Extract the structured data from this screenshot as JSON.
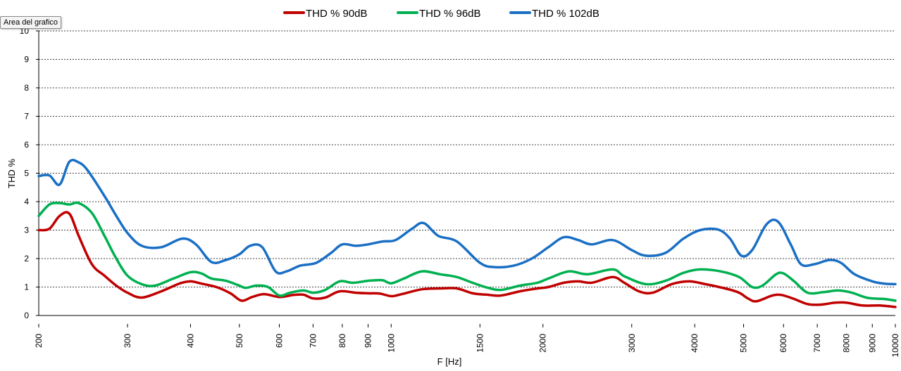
{
  "tooltip": {
    "text": "Area del grafico"
  },
  "chart_data": {
    "type": "line",
    "title": "",
    "xlabel": "F [Hz]",
    "ylabel": "THD %",
    "x_scale": "log",
    "xlim": [
      200,
      10000
    ],
    "ylim": [
      0,
      10
    ],
    "y_ticks": [
      "0",
      "1",
      "2",
      "3",
      "4",
      "5",
      "6",
      "7",
      "8",
      "9",
      "10"
    ],
    "x_ticks": [
      {
        "value": 200,
        "label": "200"
      },
      {
        "value": 300,
        "label": "300"
      },
      {
        "value": 400,
        "label": "400"
      },
      {
        "value": 500,
        "label": "500"
      },
      {
        "value": 600,
        "label": "600"
      },
      {
        "value": 700,
        "label": "700"
      },
      {
        "value": 800,
        "label": "800"
      },
      {
        "value": 900,
        "label": "900"
      },
      {
        "value": 1000,
        "label": "1000"
      },
      {
        "value": 1500,
        "label": "1500"
      },
      {
        "value": 2000,
        "label": "2000"
      },
      {
        "value": 3000,
        "label": "3000"
      },
      {
        "value": 4000,
        "label": "4000"
      },
      {
        "value": 5000,
        "label": "5000"
      },
      {
        "value": 6000,
        "label": "6000"
      },
      {
        "value": 7000,
        "label": "7000"
      },
      {
        "value": 8000,
        "label": "8000"
      },
      {
        "value": 9000,
        "label": "9000"
      },
      {
        "value": 10000,
        "label": "10000"
      }
    ],
    "grid": {
      "y_major": true,
      "style": "dashed"
    },
    "legend_position": "top-center",
    "series": [
      {
        "name": "THD % 90dB",
        "color": "#c00000",
        "points": [
          [
            200,
            3.0
          ],
          [
            210,
            3.05
          ],
          [
            220,
            3.5
          ],
          [
            230,
            3.58
          ],
          [
            240,
            2.8
          ],
          [
            255,
            1.8
          ],
          [
            270,
            1.4
          ],
          [
            285,
            1.05
          ],
          [
            300,
            0.8
          ],
          [
            320,
            0.63
          ],
          [
            350,
            0.85
          ],
          [
            380,
            1.12
          ],
          [
            400,
            1.2
          ],
          [
            420,
            1.12
          ],
          [
            450,
            1.0
          ],
          [
            480,
            0.78
          ],
          [
            505,
            0.52
          ],
          [
            530,
            0.65
          ],
          [
            560,
            0.75
          ],
          [
            600,
            0.65
          ],
          [
            640,
            0.72
          ],
          [
            670,
            0.73
          ],
          [
            700,
            0.6
          ],
          [
            740,
            0.63
          ],
          [
            790,
            0.85
          ],
          [
            850,
            0.8
          ],
          [
            900,
            0.78
          ],
          [
            950,
            0.77
          ],
          [
            1000,
            0.68
          ],
          [
            1050,
            0.75
          ],
          [
            1150,
            0.92
          ],
          [
            1250,
            0.95
          ],
          [
            1350,
            0.95
          ],
          [
            1450,
            0.78
          ],
          [
            1550,
            0.73
          ],
          [
            1650,
            0.7
          ],
          [
            1800,
            0.85
          ],
          [
            1950,
            0.95
          ],
          [
            2050,
            1.0
          ],
          [
            2200,
            1.15
          ],
          [
            2350,
            1.2
          ],
          [
            2500,
            1.15
          ],
          [
            2750,
            1.35
          ],
          [
            2900,
            1.15
          ],
          [
            3100,
            0.85
          ],
          [
            3300,
            0.8
          ],
          [
            3600,
            1.1
          ],
          [
            3900,
            1.2
          ],
          [
            4200,
            1.1
          ],
          [
            4600,
            0.95
          ],
          [
            4900,
            0.8
          ],
          [
            5100,
            0.6
          ],
          [
            5300,
            0.5
          ],
          [
            5700,
            0.7
          ],
          [
            5950,
            0.72
          ],
          [
            6300,
            0.58
          ],
          [
            6700,
            0.4
          ],
          [
            7100,
            0.38
          ],
          [
            7600,
            0.45
          ],
          [
            8000,
            0.45
          ],
          [
            8600,
            0.35
          ],
          [
            9300,
            0.35
          ],
          [
            10000,
            0.3
          ]
        ]
      },
      {
        "name": "THD % 96dB",
        "color": "#00b050",
        "points": [
          [
            200,
            3.5
          ],
          [
            210,
            3.9
          ],
          [
            220,
            3.95
          ],
          [
            230,
            3.9
          ],
          [
            240,
            3.95
          ],
          [
            255,
            3.6
          ],
          [
            270,
            2.8
          ],
          [
            285,
            2.0
          ],
          [
            300,
            1.4
          ],
          [
            320,
            1.1
          ],
          [
            340,
            1.05
          ],
          [
            370,
            1.3
          ],
          [
            400,
            1.52
          ],
          [
            420,
            1.48
          ],
          [
            440,
            1.3
          ],
          [
            470,
            1.22
          ],
          [
            500,
            1.05
          ],
          [
            515,
            0.97
          ],
          [
            540,
            1.05
          ],
          [
            570,
            1.0
          ],
          [
            600,
            0.7
          ],
          [
            630,
            0.8
          ],
          [
            670,
            0.88
          ],
          [
            700,
            0.8
          ],
          [
            740,
            0.9
          ],
          [
            790,
            1.2
          ],
          [
            840,
            1.15
          ],
          [
            900,
            1.22
          ],
          [
            960,
            1.24
          ],
          [
            1000,
            1.13
          ],
          [
            1060,
            1.3
          ],
          [
            1150,
            1.55
          ],
          [
            1250,
            1.45
          ],
          [
            1350,
            1.35
          ],
          [
            1450,
            1.15
          ],
          [
            1550,
            0.98
          ],
          [
            1650,
            0.9
          ],
          [
            1800,
            1.05
          ],
          [
            1950,
            1.15
          ],
          [
            2050,
            1.3
          ],
          [
            2250,
            1.55
          ],
          [
            2450,
            1.45
          ],
          [
            2750,
            1.62
          ],
          [
            2900,
            1.38
          ],
          [
            3200,
            1.1
          ],
          [
            3500,
            1.22
          ],
          [
            3800,
            1.5
          ],
          [
            4100,
            1.62
          ],
          [
            4500,
            1.55
          ],
          [
            4900,
            1.35
          ],
          [
            5200,
            1.0
          ],
          [
            5450,
            1.05
          ],
          [
            5800,
            1.45
          ],
          [
            6000,
            1.48
          ],
          [
            6300,
            1.2
          ],
          [
            6700,
            0.8
          ],
          [
            7200,
            0.82
          ],
          [
            7700,
            0.88
          ],
          [
            8200,
            0.8
          ],
          [
            8800,
            0.62
          ],
          [
            9500,
            0.58
          ],
          [
            10000,
            0.52
          ]
        ]
      },
      {
        "name": "THD % 102dB",
        "color": "#1a6fc4",
        "points": [
          [
            200,
            4.9
          ],
          [
            210,
            4.92
          ],
          [
            220,
            4.6
          ],
          [
            230,
            5.4
          ],
          [
            240,
            5.38
          ],
          [
            250,
            5.1
          ],
          [
            270,
            4.2
          ],
          [
            285,
            3.5
          ],
          [
            300,
            2.9
          ],
          [
            320,
            2.45
          ],
          [
            350,
            2.4
          ],
          [
            385,
            2.7
          ],
          [
            410,
            2.5
          ],
          [
            440,
            1.88
          ],
          [
            470,
            1.95
          ],
          [
            500,
            2.15
          ],
          [
            525,
            2.45
          ],
          [
            555,
            2.4
          ],
          [
            590,
            1.55
          ],
          [
            620,
            1.55
          ],
          [
            660,
            1.75
          ],
          [
            710,
            1.85
          ],
          [
            760,
            2.2
          ],
          [
            800,
            2.5
          ],
          [
            850,
            2.45
          ],
          [
            900,
            2.5
          ],
          [
            960,
            2.6
          ],
          [
            1020,
            2.65
          ],
          [
            1100,
            3.05
          ],
          [
            1160,
            3.25
          ],
          [
            1240,
            2.8
          ],
          [
            1350,
            2.6
          ],
          [
            1500,
            1.85
          ],
          [
            1600,
            1.7
          ],
          [
            1750,
            1.75
          ],
          [
            1900,
            2.0
          ],
          [
            2050,
            2.4
          ],
          [
            2200,
            2.75
          ],
          [
            2350,
            2.65
          ],
          [
            2500,
            2.5
          ],
          [
            2750,
            2.65
          ],
          [
            3000,
            2.3
          ],
          [
            3200,
            2.1
          ],
          [
            3500,
            2.2
          ],
          [
            3800,
            2.7
          ],
          [
            4100,
            3.0
          ],
          [
            4450,
            3.02
          ],
          [
            4700,
            2.7
          ],
          [
            4950,
            2.1
          ],
          [
            5200,
            2.3
          ],
          [
            5550,
            3.2
          ],
          [
            5850,
            3.3
          ],
          [
            6200,
            2.5
          ],
          [
            6500,
            1.8
          ],
          [
            6900,
            1.8
          ],
          [
            7400,
            1.95
          ],
          [
            7800,
            1.85
          ],
          [
            8300,
            1.45
          ],
          [
            9000,
            1.2
          ],
          [
            9500,
            1.12
          ],
          [
            10000,
            1.1
          ]
        ]
      }
    ]
  }
}
